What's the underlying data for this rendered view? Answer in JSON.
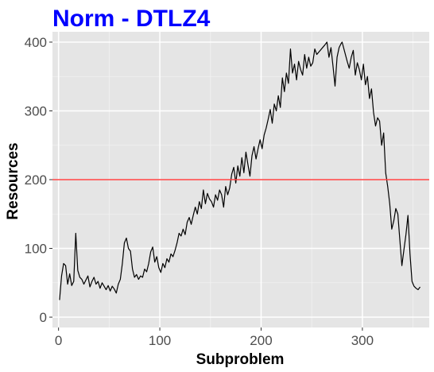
{
  "chart_data": {
    "type": "line",
    "title": "Norm - DTLZ4",
    "title_color": "#0000ff",
    "xlabel": "Subproblem",
    "ylabel": "Resources",
    "xlim": [
      -6,
      366
    ],
    "ylim": [
      -15,
      415
    ],
    "x_ticks": [
      0,
      100,
      200,
      300
    ],
    "y_ticks": [
      0,
      100,
      200,
      300,
      400
    ],
    "grid": true,
    "panel_color": "#e5e5e5",
    "line_color": "#000000",
    "reference_line": {
      "y": 200,
      "color": "#ff4040"
    },
    "series": [
      {
        "values": [
          [
            1,
            25
          ],
          [
            3,
            60
          ],
          [
            5,
            78
          ],
          [
            7,
            75
          ],
          [
            9,
            48
          ],
          [
            11,
            63
          ],
          [
            13,
            46
          ],
          [
            15,
            52
          ],
          [
            17,
            122
          ],
          [
            19,
            68
          ],
          [
            21,
            58
          ],
          [
            23,
            55
          ],
          [
            25,
            48
          ],
          [
            27,
            54
          ],
          [
            29,
            60
          ],
          [
            31,
            44
          ],
          [
            33,
            52
          ],
          [
            35,
            58
          ],
          [
            37,
            48
          ],
          [
            39,
            52
          ],
          [
            41,
            42
          ],
          [
            43,
            50
          ],
          [
            45,
            45
          ],
          [
            47,
            40
          ],
          [
            49,
            46
          ],
          [
            51,
            38
          ],
          [
            53,
            45
          ],
          [
            55,
            41
          ],
          [
            57,
            35
          ],
          [
            59,
            48
          ],
          [
            61,
            55
          ],
          [
            63,
            78
          ],
          [
            65,
            108
          ],
          [
            67,
            115
          ],
          [
            69,
            100
          ],
          [
            71,
            96
          ],
          [
            73,
            70
          ],
          [
            75,
            58
          ],
          [
            77,
            62
          ],
          [
            79,
            55
          ],
          [
            81,
            60
          ],
          [
            83,
            58
          ],
          [
            85,
            70
          ],
          [
            87,
            66
          ],
          [
            89,
            78
          ],
          [
            91,
            95
          ],
          [
            93,
            102
          ],
          [
            95,
            80
          ],
          [
            97,
            88
          ],
          [
            99,
            72
          ],
          [
            101,
            65
          ],
          [
            103,
            78
          ],
          [
            105,
            72
          ],
          [
            107,
            85
          ],
          [
            109,
            80
          ],
          [
            111,
            92
          ],
          [
            113,
            88
          ],
          [
            115,
            97
          ],
          [
            117,
            108
          ],
          [
            119,
            122
          ],
          [
            121,
            118
          ],
          [
            123,
            128
          ],
          [
            125,
            120
          ],
          [
            127,
            138
          ],
          [
            129,
            145
          ],
          [
            131,
            135
          ],
          [
            133,
            148
          ],
          [
            135,
            160
          ],
          [
            137,
            150
          ],
          [
            139,
            168
          ],
          [
            141,
            158
          ],
          [
            143,
            185
          ],
          [
            145,
            165
          ],
          [
            147,
            180
          ],
          [
            149,
            172
          ],
          [
            151,
            168
          ],
          [
            153,
            160
          ],
          [
            155,
            178
          ],
          [
            157,
            170
          ],
          [
            159,
            185
          ],
          [
            161,
            178
          ],
          [
            163,
            160
          ],
          [
            165,
            190
          ],
          [
            167,
            178
          ],
          [
            169,
            188
          ],
          [
            171,
            208
          ],
          [
            173,
            218
          ],
          [
            175,
            195
          ],
          [
            177,
            220
          ],
          [
            179,
            205
          ],
          [
            181,
            232
          ],
          [
            183,
            210
          ],
          [
            185,
            240
          ],
          [
            187,
            222
          ],
          [
            189,
            205
          ],
          [
            191,
            235
          ],
          [
            193,
            248
          ],
          [
            195,
            230
          ],
          [
            197,
            245
          ],
          [
            199,
            258
          ],
          [
            201,
            245
          ],
          [
            203,
            265
          ],
          [
            205,
            275
          ],
          [
            207,
            288
          ],
          [
            209,
            302
          ],
          [
            211,
            282
          ],
          [
            213,
            310
          ],
          [
            215,
            300
          ],
          [
            217,
            322
          ],
          [
            219,
            305
          ],
          [
            221,
            348
          ],
          [
            223,
            328
          ],
          [
            225,
            355
          ],
          [
            227,
            340
          ],
          [
            229,
            390
          ],
          [
            231,
            355
          ],
          [
            233,
            368
          ],
          [
            235,
            345
          ],
          [
            237,
            372
          ],
          [
            239,
            360
          ],
          [
            241,
            352
          ],
          [
            243,
            382
          ],
          [
            245,
            362
          ],
          [
            247,
            378
          ],
          [
            249,
            365
          ],
          [
            251,
            370
          ],
          [
            253,
            390
          ],
          [
            255,
            382
          ],
          [
            263,
            396
          ],
          [
            265,
            400
          ],
          [
            267,
            378
          ],
          [
            269,
            392
          ],
          [
            271,
            365
          ],
          [
            273,
            336
          ],
          [
            275,
            378
          ],
          [
            277,
            392
          ],
          [
            279,
            398
          ],
          [
            280,
            400
          ],
          [
            285,
            372
          ],
          [
            287,
            362
          ],
          [
            289,
            378
          ],
          [
            291,
            388
          ],
          [
            293,
            352
          ],
          [
            295,
            370
          ],
          [
            297,
            360
          ],
          [
            299,
            345
          ],
          [
            301,
            368
          ],
          [
            303,
            338
          ],
          [
            305,
            350
          ],
          [
            307,
            318
          ],
          [
            309,
            332
          ],
          [
            311,
            298
          ],
          [
            313,
            278
          ],
          [
            315,
            290
          ],
          [
            317,
            285
          ],
          [
            319,
            250
          ],
          [
            321,
            268
          ],
          [
            323,
            210
          ],
          [
            325,
            190
          ],
          [
            327,
            165
          ],
          [
            329,
            128
          ],
          [
            331,
            140
          ],
          [
            333,
            158
          ],
          [
            335,
            150
          ],
          [
            337,
            112
          ],
          [
            339,
            75
          ],
          [
            341,
            98
          ],
          [
            343,
            120
          ],
          [
            345,
            148
          ],
          [
            347,
            92
          ],
          [
            349,
            52
          ],
          [
            351,
            45
          ],
          [
            353,
            42
          ],
          [
            355,
            40
          ],
          [
            357,
            44
          ]
        ]
      }
    ]
  }
}
